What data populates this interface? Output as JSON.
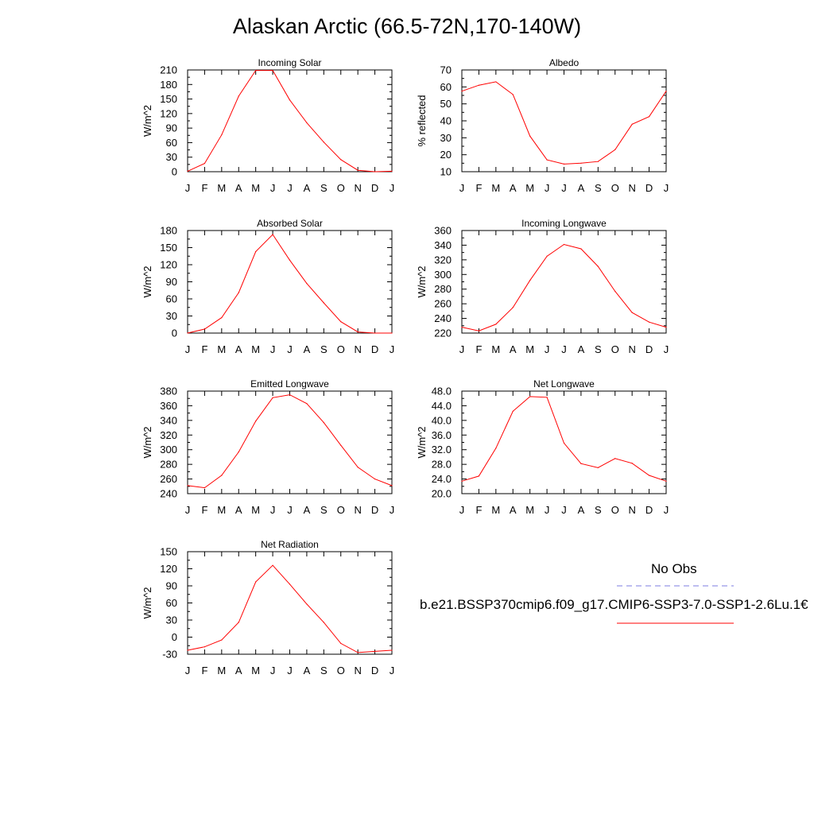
{
  "title": "Alaskan Arctic (66.5-72N,170-140W)",
  "month_labels": [
    "J",
    "F",
    "M",
    "A",
    "M",
    "J",
    "J",
    "A",
    "S",
    "O",
    "N",
    "D",
    "J"
  ],
  "legend": {
    "obs_label": "No Obs",
    "obs_color": "#7b7be0",
    "case_label": "b.e21.BSSP370cmip6.f09_g17.CMIP6-SSP3-7.0-SSP1-2.6Lu.1€",
    "case_color": "#ff0000"
  },
  "line_color": "#ff0000",
  "chart_data": [
    {
      "type": "line",
      "title": "Incoming Solar",
      "ylabel": "W/m^2",
      "x": [
        "J",
        "F",
        "M",
        "A",
        "M",
        "J",
        "J",
        "A",
        "S",
        "O",
        "N",
        "D",
        "J"
      ],
      "series": [
        {
          "values": [
            1,
            17,
            76,
            156,
            209,
            209,
            148,
            101,
            61,
            25,
            3,
            0,
            1
          ]
        }
      ],
      "ylim": [
        0,
        210
      ],
      "yticks": [
        0,
        30,
        60,
        90,
        120,
        150,
        180,
        210
      ],
      "ytick_labels": [
        "0",
        "30",
        "60",
        "90",
        "120",
        "150",
        "180",
        "210"
      ]
    },
    {
      "type": "line",
      "title": "Albedo",
      "ylabel": "% reflected",
      "x": [
        "J",
        "F",
        "M",
        "A",
        "M",
        "J",
        "J",
        "A",
        "S",
        "O",
        "N",
        "D",
        "J"
      ],
      "series": [
        {
          "values": [
            57.5,
            61,
            63,
            55.5,
            31,
            17,
            14.5,
            15,
            16,
            23,
            38,
            42.5,
            57.5
          ]
        }
      ],
      "ylim": [
        10,
        70
      ],
      "yticks": [
        10,
        20,
        30,
        40,
        50,
        60,
        70
      ],
      "ytick_labels": [
        "10",
        "20",
        "30",
        "40",
        "50",
        "60",
        "70"
      ]
    },
    {
      "type": "line",
      "title": "Absorbed Solar",
      "ylabel": "W/m^2",
      "x": [
        "J",
        "F",
        "M",
        "A",
        "M",
        "J",
        "J",
        "A",
        "S",
        "O",
        "N",
        "D",
        "J"
      ],
      "series": [
        {
          "values": [
            0,
            7,
            27,
            71,
            143,
            173,
            128,
            87,
            53,
            20,
            2,
            0,
            0
          ]
        }
      ],
      "ylim": [
        0,
        180
      ],
      "yticks": [
        0,
        30,
        60,
        90,
        120,
        150,
        180
      ],
      "ytick_labels": [
        "0",
        "30",
        "60",
        "90",
        "120",
        "150",
        "180"
      ]
    },
    {
      "type": "line",
      "title": "Incoming Longwave",
      "ylabel": "W/m^2",
      "x": [
        "J",
        "F",
        "M",
        "A",
        "M",
        "J",
        "J",
        "A",
        "S",
        "O",
        "N",
        "D",
        "J"
      ],
      "series": [
        {
          "values": [
            228,
            223,
            232,
            255,
            292,
            325,
            341,
            335,
            311,
            277,
            248,
            235,
            228
          ]
        }
      ],
      "ylim": [
        220,
        360
      ],
      "yticks": [
        220,
        240,
        260,
        280,
        300,
        320,
        340,
        360
      ],
      "ytick_labels": [
        "220",
        "240",
        "260",
        "280",
        "300",
        "320",
        "340",
        "360"
      ]
    },
    {
      "type": "line",
      "title": "Emitted Longwave",
      "ylabel": "W/m^2",
      "x": [
        "J",
        "F",
        "M",
        "A",
        "M",
        "J",
        "J",
        "A",
        "S",
        "O",
        "N",
        "D",
        "J"
      ],
      "series": [
        {
          "values": [
            251,
            248,
            265,
            297,
            339,
            371,
            375,
            363,
            337,
            306,
            276,
            260,
            251
          ]
        }
      ],
      "ylim": [
        240,
        380
      ],
      "yticks": [
        240,
        260,
        280,
        300,
        320,
        340,
        360,
        380
      ],
      "ytick_labels": [
        "240",
        "260",
        "280",
        "300",
        "320",
        "340",
        "360",
        "380"
      ]
    },
    {
      "type": "line",
      "title": "Net Longwave",
      "ylabel": "W/m^2",
      "x": [
        "J",
        "F",
        "M",
        "A",
        "M",
        "J",
        "J",
        "A",
        "S",
        "O",
        "N",
        "D",
        "J"
      ],
      "series": [
        {
          "values": [
            23.4,
            24.8,
            32.4,
            42.5,
            46.5,
            46.3,
            33.8,
            28.2,
            27.1,
            29.6,
            28.3,
            25.0,
            23.4
          ]
        }
      ],
      "ylim": [
        20,
        48
      ],
      "yticks": [
        20,
        24,
        28,
        32,
        36,
        40,
        44,
        48
      ],
      "ytick_labels": [
        "20.0",
        "24.0",
        "28.0",
        "32.0",
        "36.0",
        "40.0",
        "44.0",
        "48.0"
      ]
    },
    {
      "type": "line",
      "title": "Net Radiation",
      "ylabel": "W/m^2",
      "x": [
        "J",
        "F",
        "M",
        "A",
        "M",
        "J",
        "J",
        "A",
        "S",
        "O",
        "N",
        "D",
        "J"
      ],
      "series": [
        {
          "values": [
            -23,
            -17,
            -5,
            26,
            97,
            126,
            93,
            58,
            26,
            -11,
            -27,
            -25,
            -23
          ]
        }
      ],
      "ylim": [
        -30,
        150
      ],
      "yticks": [
        -30,
        0,
        30,
        60,
        90,
        120,
        150
      ],
      "ytick_labels": [
        "-30",
        "0",
        "30",
        "60",
        "90",
        "120",
        "150"
      ]
    }
  ]
}
